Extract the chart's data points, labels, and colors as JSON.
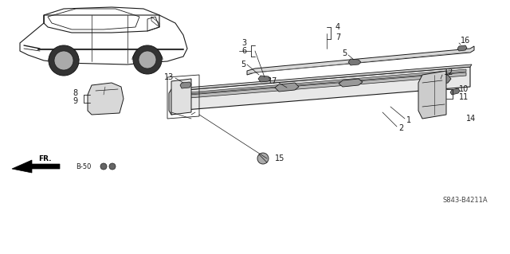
{
  "background_color": "#ffffff",
  "ref_text": "S843-B4211A",
  "figsize": [
    6.4,
    3.19
  ],
  "dpi": 100,
  "font_size": 7,
  "text_color": "#1a1a1a",
  "line_color": "#1a1a1a"
}
